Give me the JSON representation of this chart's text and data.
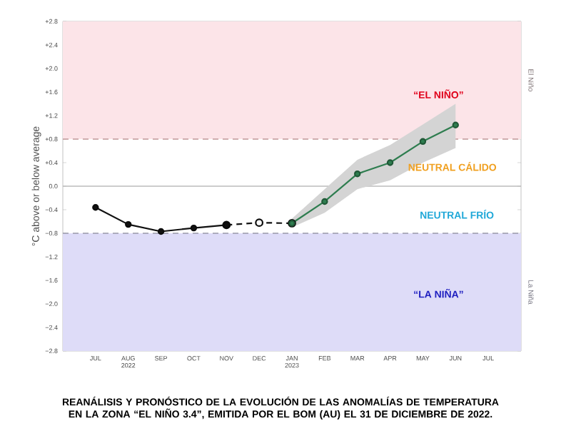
{
  "chart_data": {
    "type": "line",
    "title": "REANÁLISIS Y PRONÓSTICO DE LA EVOLUCIÓN DE LAS ANOMALÍAS DE TEMPERATURA EN LA ZONA “EL NIÑO 3.4”, EMITIDA POR EL BOM (AU) EL 31 DE DICIEMBRE DE 2022.",
    "ylabel": "°C above or below average",
    "categories": [
      "JUL",
      "AUG 2022",
      "SEP",
      "OCT",
      "NOV",
      "DEC",
      "JAN 2023",
      "FEB",
      "MAR",
      "APR",
      "MAY",
      "JUN",
      "JUL"
    ],
    "series": [
      {
        "color": "#111111",
        "values": [
          -0.36,
          -0.65,
          -0.77,
          -0.71,
          -0.66,
          null,
          null,
          null,
          null,
          null,
          null,
          null,
          null
        ],
        "line_style": "solid",
        "marker": "circle"
      },
      {
        "color": "#111111",
        "values": [
          null,
          null,
          null,
          null,
          -0.66,
          -0.62,
          -0.63,
          null,
          null,
          null,
          null,
          null,
          null
        ],
        "line_style": "dashed",
        "marker": "circle"
      },
      {
        "color": "#2e7d4f",
        "values": [
          null,
          null,
          null,
          null,
          null,
          null,
          -0.63,
          -0.26,
          0.21,
          0.4,
          0.76,
          1.04,
          null
        ],
        "lower": [
          null,
          null,
          null,
          null,
          null,
          null,
          -0.7,
          -0.45,
          -0.05,
          0.1,
          0.4,
          0.65,
          null
        ],
        "upper": [
          null,
          null,
          null,
          null,
          null,
          null,
          -0.55,
          -0.05,
          0.45,
          0.7,
          1.05,
          1.4,
          null
        ],
        "line_style": "solid",
        "marker": "circle"
      }
    ],
    "ylim": [
      -2.8,
      2.8
    ],
    "yticks": [
      {
        "value": -2.8,
        "label": "−2.8"
      },
      {
        "value": -2.4,
        "label": "−2.4"
      },
      {
        "value": -2.0,
        "label": "−2.0"
      },
      {
        "value": -1.6,
        "label": "−1.6"
      },
      {
        "value": -1.2,
        "label": "−1.2"
      },
      {
        "value": -0.8,
        "label": "−0.8"
      },
      {
        "value": -0.4,
        "label": "−0.4"
      },
      {
        "value": 0,
        "label": "0.0"
      },
      {
        "value": 0.4,
        "label": "+0.4"
      },
      {
        "value": 0.8,
        "label": "+0.8"
      },
      {
        "value": 1.2,
        "label": "+1.2"
      },
      {
        "value": 1.6,
        "label": "+1.6"
      },
      {
        "value": 2.0,
        "label": "+2.0"
      },
      {
        "value": 2.4,
        "label": "+2.4"
      },
      {
        "value": 2.8,
        "label": "+2.8"
      }
    ],
    "bands": [
      {
        "axis": "y",
        "from": 0.8,
        "to": 2.8,
        "label": "El Niño",
        "color": "#fce4e8"
      },
      {
        "axis": "y",
        "from": -2.8,
        "to": -0.8,
        "label": "La Niña",
        "color": "#dedcf8"
      }
    ],
    "ref_lines": [
      {
        "axis": "y",
        "value": 0.8,
        "color": "#c09898",
        "line_style": "dashed"
      },
      {
        "axis": "y",
        "value": 0,
        "color": "#bbbbbb",
        "line_style": "solid"
      },
      {
        "axis": "y",
        "value": -0.8,
        "color": "#9898a8",
        "line_style": "dashed"
      }
    ],
    "annotations": [
      "“EL NIÑO”",
      "NEUTRAL CÁLIDO",
      "NEUTRAL FRÍO",
      "“LA NIÑA”"
    ]
  }
}
